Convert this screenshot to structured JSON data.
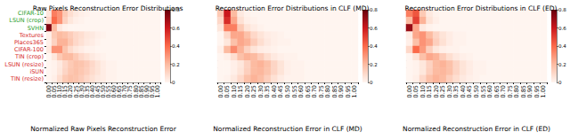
{
  "chart_data": [
    {
      "type": "heatmap",
      "title": "Raw Pixels Reconstruction Error Distributions",
      "x_label": "Normalized Raw Pixels Reconstruction Error",
      "categories": [
        "0.00",
        "0.05",
        "0.10",
        "0.15",
        "0.20",
        "0.25",
        "0.30",
        "0.35",
        "0.40",
        "0.45",
        "0.50",
        "0.55",
        "0.60",
        "0.65",
        "0.70",
        "0.75",
        "0.80",
        "0.85",
        "0.90",
        "0.95",
        "1.00"
      ],
      "y_categories": [
        "CIFAR-10",
        "LSUN (crop)",
        "SVHN",
        "Textures",
        "Places365",
        "CIFAR-100",
        "TIN (crop)",
        "LSUN (resize)",
        "iSUN",
        "TIN (resize)"
      ],
      "cells": [
        [
          0.05,
          0.35,
          0.3,
          0.15,
          0.08,
          0.04,
          0.02,
          0.01,
          0,
          0,
          0,
          0,
          0,
          0,
          0,
          0,
          0,
          0,
          0,
          0,
          0
        ],
        [
          0.1,
          0.4,
          0.3,
          0.12,
          0.05,
          0.02,
          0.01,
          0,
          0,
          0,
          0,
          0,
          0,
          0,
          0,
          0,
          0,
          0,
          0,
          0,
          0
        ],
        [
          0.75,
          0.2,
          0.04,
          0.01,
          0,
          0,
          0,
          0,
          0,
          0,
          0,
          0,
          0,
          0,
          0,
          0,
          0,
          0,
          0,
          0,
          0
        ],
        [
          0.02,
          0.15,
          0.2,
          0.18,
          0.14,
          0.1,
          0.08,
          0.05,
          0.04,
          0.02,
          0.01,
          0,
          0,
          0,
          0,
          0,
          0,
          0,
          0,
          0,
          0
        ],
        [
          0.02,
          0.12,
          0.22,
          0.22,
          0.16,
          0.1,
          0.07,
          0.04,
          0.03,
          0.01,
          0,
          0,
          0,
          0,
          0,
          0,
          0,
          0,
          0,
          0,
          0
        ],
        [
          0.04,
          0.3,
          0.3,
          0.17,
          0.09,
          0.05,
          0.03,
          0.01,
          0.01,
          0,
          0,
          0,
          0,
          0,
          0,
          0,
          0,
          0,
          0,
          0,
          0
        ],
        [
          0,
          0.05,
          0.15,
          0.2,
          0.2,
          0.15,
          0.1,
          0.07,
          0.04,
          0.02,
          0.01,
          0,
          0,
          0,
          0,
          0,
          0,
          0,
          0,
          0,
          0
        ],
        [
          0,
          0.01,
          0.04,
          0.1,
          0.15,
          0.18,
          0.17,
          0.14,
          0.1,
          0.06,
          0.03,
          0.01,
          0.01,
          0,
          0,
          0,
          0,
          0,
          0,
          0,
          0
        ],
        [
          0,
          0.01,
          0.05,
          0.11,
          0.16,
          0.18,
          0.16,
          0.13,
          0.09,
          0.06,
          0.03,
          0.01,
          0.01,
          0,
          0,
          0,
          0,
          0,
          0,
          0,
          0
        ],
        [
          0,
          0.02,
          0.08,
          0.15,
          0.18,
          0.17,
          0.14,
          0.1,
          0.07,
          0.04,
          0.03,
          0.01,
          0.01,
          0,
          0,
          0,
          0,
          0,
          0,
          0,
          0
        ]
      ],
      "colorbar": {
        "range": [
          0,
          0.8
        ],
        "ticks": [
          0,
          0.2,
          0.4,
          0.6,
          0.8
        ]
      }
    },
    {
      "type": "heatmap",
      "title": "Reconstruction Error Distributions in CLF (MD)",
      "x_label": "Normalized Reconstruction Error in CLF (MD)",
      "categories": [
        "0.00",
        "0.05",
        "0.10",
        "0.15",
        "0.20",
        "0.25",
        "0.30",
        "0.35",
        "0.40",
        "0.45",
        "0.50",
        "0.55",
        "0.60",
        "0.65",
        "0.70",
        "0.75",
        "0.80",
        "0.85",
        "0.90",
        "0.95",
        "1.00"
      ],
      "tick_labels": "x",
      "cells": [
        [
          0.15,
          0.6,
          0.2,
          0.04,
          0.01,
          0,
          0,
          0,
          0,
          0,
          0,
          0,
          0,
          0,
          0,
          0,
          0,
          0,
          0,
          0,
          0
        ],
        [
          0.1,
          0.55,
          0.25,
          0.07,
          0.02,
          0.01,
          0,
          0,
          0,
          0,
          0,
          0,
          0,
          0,
          0,
          0,
          0,
          0,
          0,
          0,
          0
        ],
        [
          0.05,
          0.35,
          0.35,
          0.15,
          0.06,
          0.03,
          0.01,
          0,
          0,
          0,
          0,
          0,
          0,
          0,
          0,
          0,
          0,
          0,
          0,
          0,
          0
        ],
        [
          0,
          0.1,
          0.25,
          0.25,
          0.18,
          0.1,
          0.06,
          0.03,
          0.02,
          0.01,
          0,
          0,
          0,
          0,
          0,
          0,
          0,
          0,
          0,
          0,
          0
        ],
        [
          0,
          0.05,
          0.18,
          0.25,
          0.22,
          0.14,
          0.08,
          0.04,
          0.02,
          0.01,
          0.01,
          0,
          0,
          0,
          0,
          0,
          0,
          0,
          0,
          0,
          0
        ],
        [
          0.02,
          0.2,
          0.32,
          0.22,
          0.12,
          0.06,
          0.03,
          0.02,
          0.01,
          0,
          0,
          0,
          0,
          0,
          0,
          0,
          0,
          0,
          0,
          0,
          0
        ],
        [
          0,
          0.02,
          0.08,
          0.18,
          0.22,
          0.2,
          0.14,
          0.08,
          0.04,
          0.02,
          0.01,
          0.01,
          0,
          0,
          0,
          0,
          0,
          0,
          0,
          0,
          0
        ],
        [
          0,
          0,
          0.02,
          0.05,
          0.12,
          0.2,
          0.22,
          0.18,
          0.11,
          0.06,
          0.02,
          0.01,
          0.01,
          0,
          0,
          0,
          0,
          0,
          0,
          0,
          0
        ],
        [
          0,
          0,
          0.02,
          0.06,
          0.13,
          0.2,
          0.21,
          0.17,
          0.11,
          0.06,
          0.02,
          0.01,
          0.01,
          0,
          0,
          0,
          0,
          0,
          0,
          0,
          0
        ],
        [
          0,
          0.01,
          0.04,
          0.1,
          0.18,
          0.22,
          0.19,
          0.13,
          0.07,
          0.03,
          0.01,
          0.01,
          0.01,
          0,
          0,
          0,
          0,
          0,
          0,
          0,
          0
        ]
      ],
      "colorbar": {
        "range": [
          0,
          0.8
        ],
        "ticks": [
          0,
          0.2,
          0.4,
          0.6,
          0.8
        ]
      }
    },
    {
      "type": "heatmap",
      "title": "Reconstruction Error Distributions in CLF (ED)",
      "x_label": "Normalized Reconstruction Error in CLF (ED)",
      "categories": [
        "0.00",
        "0.05",
        "0.10",
        "0.15",
        "0.20",
        "0.25",
        "0.30",
        "0.35",
        "0.40",
        "0.45",
        "0.50",
        "0.55",
        "0.60",
        "0.65",
        "0.70",
        "0.75",
        "0.80",
        "0.85",
        "0.90",
        "0.95",
        "1.00"
      ],
      "tick_labels": "x",
      "cells": [
        [
          0.35,
          0.45,
          0.15,
          0.04,
          0.01,
          0,
          0,
          0,
          0,
          0,
          0,
          0,
          0,
          0,
          0,
          0,
          0,
          0,
          0,
          0,
          0
        ],
        [
          0.2,
          0.5,
          0.22,
          0.06,
          0.02,
          0,
          0,
          0,
          0,
          0,
          0,
          0,
          0,
          0,
          0,
          0,
          0,
          0,
          0,
          0,
          0
        ],
        [
          0.7,
          0.25,
          0.04,
          0.01,
          0,
          0,
          0,
          0,
          0,
          0,
          0,
          0,
          0,
          0,
          0,
          0,
          0,
          0,
          0,
          0,
          0
        ],
        [
          0.03,
          0.25,
          0.3,
          0.2,
          0.11,
          0.06,
          0.03,
          0.01,
          0.01,
          0,
          0,
          0,
          0,
          0,
          0,
          0,
          0,
          0,
          0,
          0,
          0
        ],
        [
          0.02,
          0.18,
          0.3,
          0.25,
          0.13,
          0.07,
          0.03,
          0.01,
          0.01,
          0,
          0,
          0,
          0,
          0,
          0,
          0,
          0,
          0,
          0,
          0,
          0
        ],
        [
          0.1,
          0.4,
          0.28,
          0.13,
          0.05,
          0.02,
          0.01,
          0.01,
          0,
          0,
          0,
          0,
          0,
          0,
          0,
          0,
          0,
          0,
          0,
          0,
          0
        ],
        [
          0,
          0.06,
          0.18,
          0.25,
          0.22,
          0.14,
          0.08,
          0.04,
          0.02,
          0.01,
          0,
          0,
          0,
          0,
          0,
          0,
          0,
          0,
          0,
          0,
          0
        ],
        [
          0,
          0.01,
          0.05,
          0.12,
          0.2,
          0.22,
          0.18,
          0.11,
          0.06,
          0.03,
          0.01,
          0.01,
          0,
          0,
          0,
          0,
          0,
          0,
          0,
          0,
          0
        ],
        [
          0,
          0.01,
          0.05,
          0.13,
          0.2,
          0.21,
          0.18,
          0.11,
          0.06,
          0.03,
          0.01,
          0.01,
          0,
          0,
          0,
          0,
          0,
          0,
          0,
          0,
          0
        ],
        [
          0,
          0.02,
          0.1,
          0.18,
          0.22,
          0.2,
          0.13,
          0.08,
          0.04,
          0.02,
          0.01,
          0,
          0,
          0,
          0,
          0,
          0,
          0,
          0,
          0,
          0
        ]
      ],
      "colorbar": {
        "range": [
          0,
          0.8
        ],
        "ticks": [
          0,
          0.2,
          0.4,
          0.6,
          0.8
        ]
      }
    }
  ]
}
